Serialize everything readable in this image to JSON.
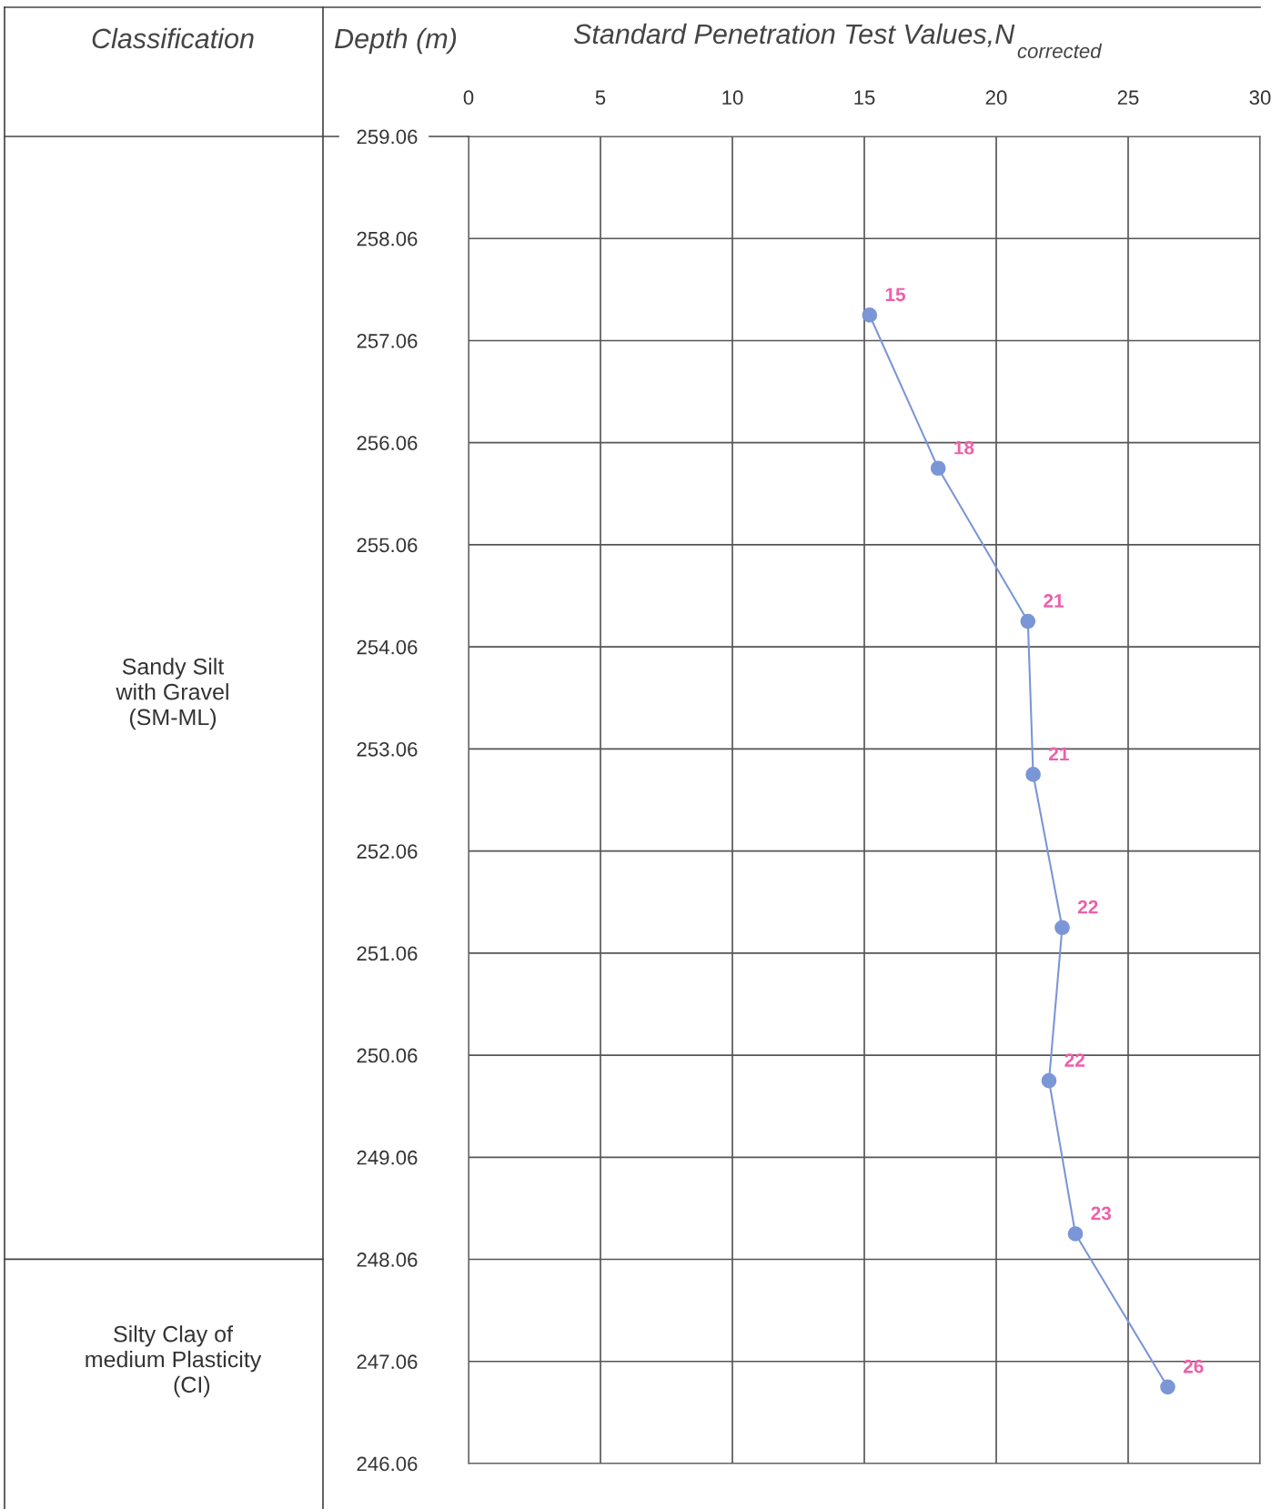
{
  "chart_data": {
    "type": "line",
    "orientation": "horizontal",
    "title": "Standard Penetration Test Values,N$_{corrected}$",
    "ylabel": "Depth (m)",
    "annotations": [
      "Classification",
      "Sandy Silt\nwith Gravel\n(SM-ML)",
      "Silty Clay of\nmedium Plasticity\n      (CI)"
    ],
    "x": [
      257.31,
      255.81,
      254.31,
      252.81,
      251.31,
      249.81,
      248.31,
      246.81
    ],
    "series": [
      {
        "color": "#7b96d6",
        "values": [
          15.2,
          17.8,
          21.2,
          21.4,
          22.5,
          22.0,
          23.0,
          26.5
        ],
        "value_labels": [
          "15",
          "18",
          "21",
          "21",
          "22",
          "22",
          "23",
          "26"
        ]
      }
    ],
    "marker": "circle",
    "grid": true,
    "xlim": [
      0,
      30
    ],
    "xticks": [
      0,
      5,
      10,
      15,
      20,
      25,
      30
    ],
    "ylim": [
      246.06,
      259.06
    ],
    "yticks": [
      259.06,
      258.06,
      257.06,
      256.06,
      255.06,
      254.06,
      253.06,
      252.06,
      251.06,
      250.06,
      249.06,
      248.06,
      247.06,
      246.06
    ]
  }
}
